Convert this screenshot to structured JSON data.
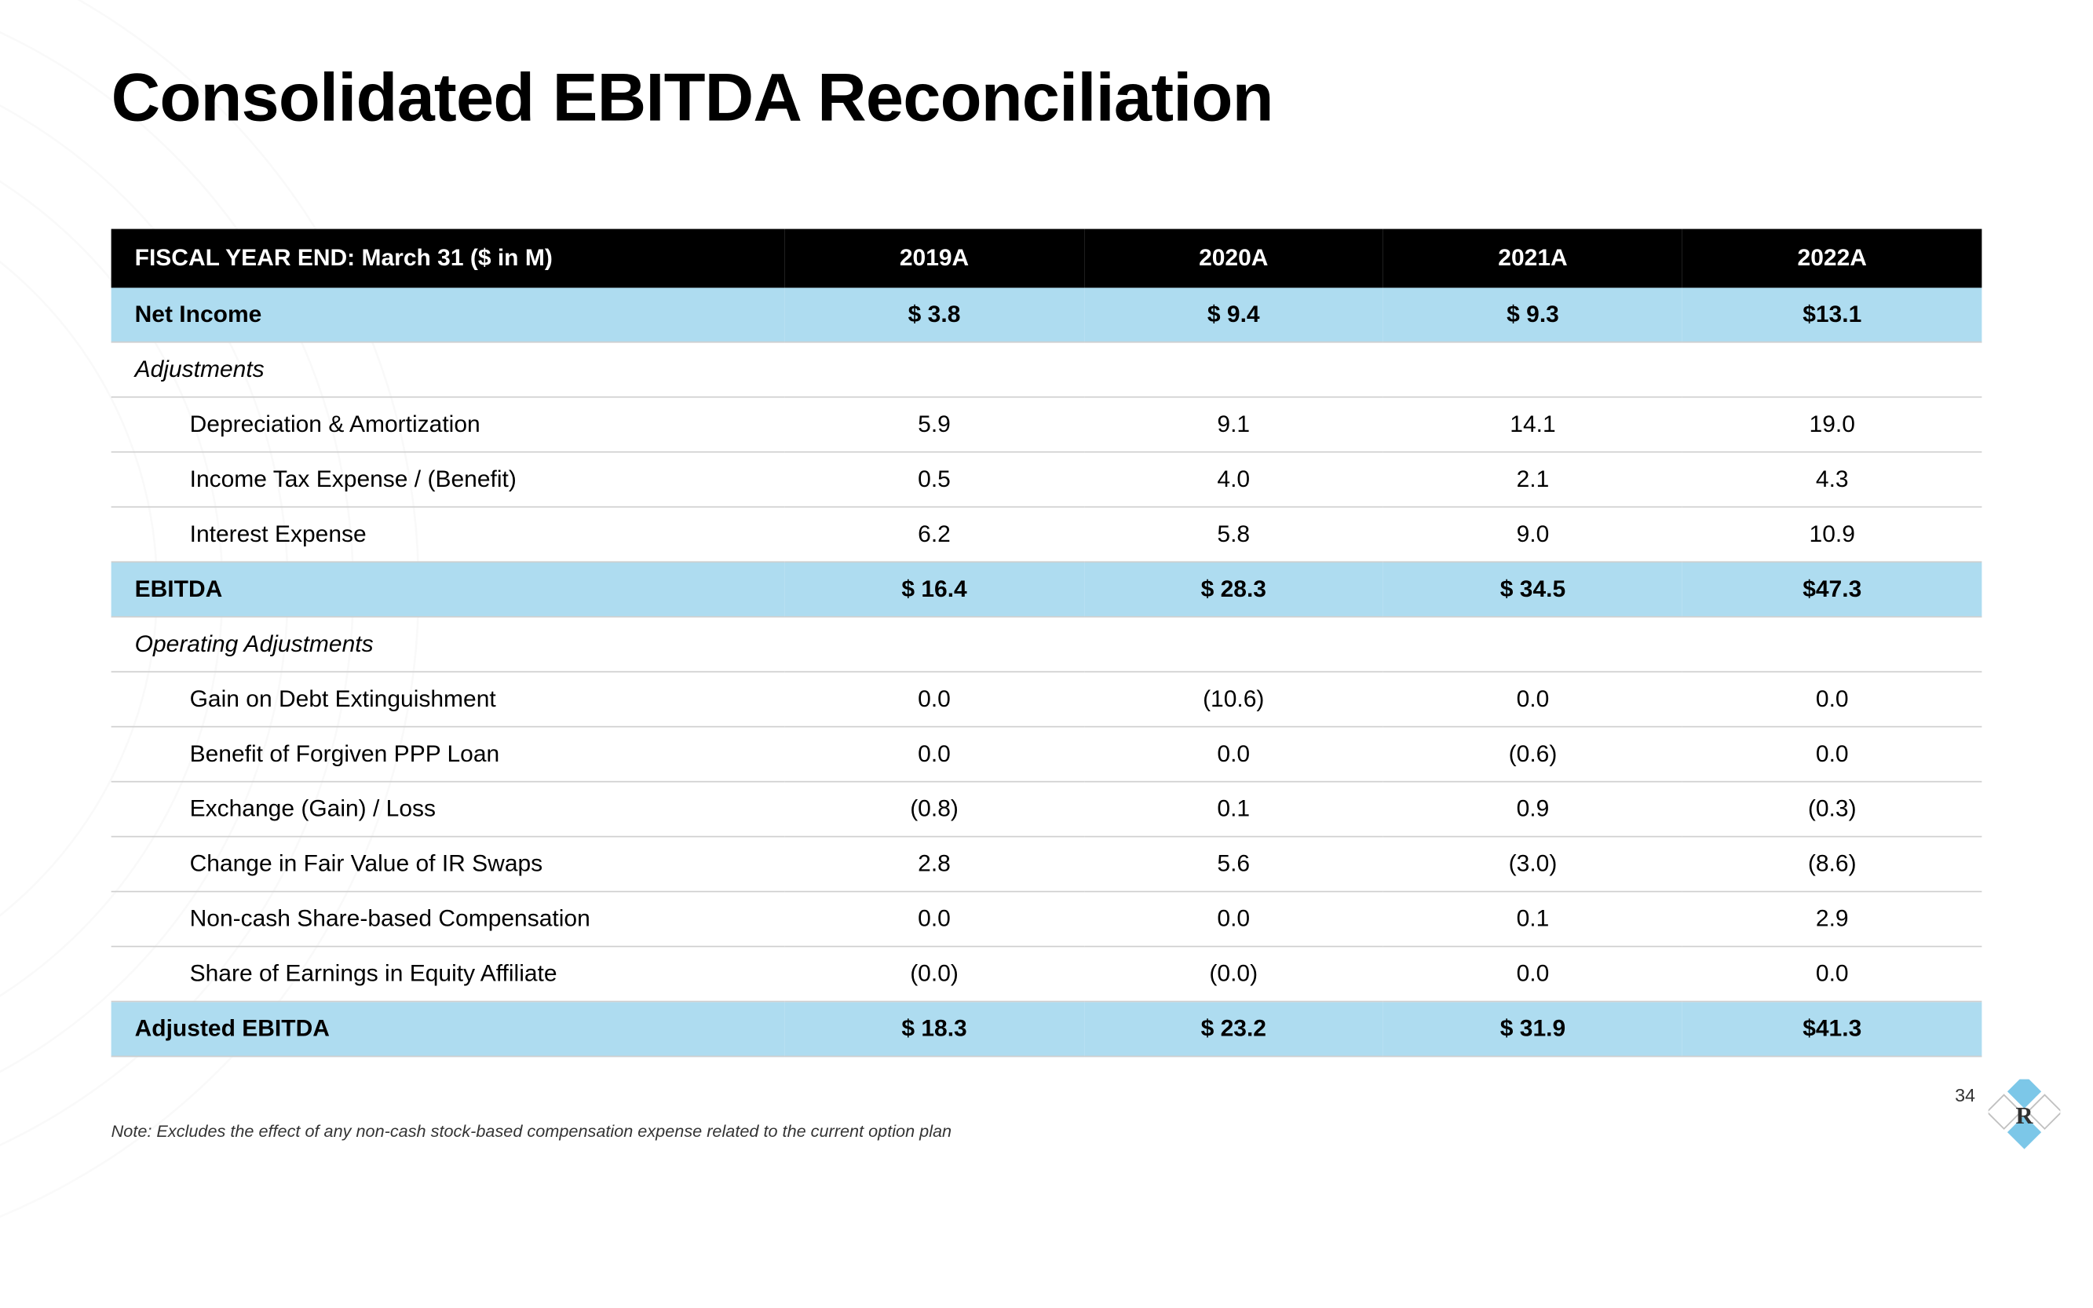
{
  "title": "Consolidated EBITDA Reconciliation",
  "header": {
    "label": "FISCAL YEAR END: March 31 ($ in M)",
    "cols": [
      "2019A",
      "2020A",
      "2021A",
      "2022A"
    ]
  },
  "rows": [
    {
      "type": "highlight",
      "label": "Net Income",
      "vals": [
        "$ 3.8",
        "$ 9.4",
        "$ 9.3",
        "$13.1"
      ]
    },
    {
      "type": "section",
      "label": "Adjustments",
      "vals": [
        "",
        "",
        "",
        ""
      ]
    },
    {
      "type": "indent",
      "label": "Depreciation & Amortization",
      "vals": [
        "5.9",
        "9.1",
        "14.1",
        "19.0"
      ]
    },
    {
      "type": "indent",
      "label": "Income Tax Expense / (Benefit)",
      "vals": [
        "0.5",
        "4.0",
        "2.1",
        "4.3"
      ]
    },
    {
      "type": "indent",
      "label": "Interest Expense",
      "vals": [
        "6.2",
        "5.8",
        "9.0",
        "10.9"
      ]
    },
    {
      "type": "highlight",
      "label": "EBITDA",
      "vals": [
        "$ 16.4",
        "$ 28.3",
        "$ 34.5",
        "$47.3"
      ]
    },
    {
      "type": "section",
      "label": "Operating Adjustments",
      "vals": [
        "",
        "",
        "",
        ""
      ]
    },
    {
      "type": "indent",
      "label": "Gain on Debt Extinguishment",
      "vals": [
        "0.0",
        "(10.6)",
        "0.0",
        "0.0"
      ]
    },
    {
      "type": "indent",
      "label": "Benefit of Forgiven PPP Loan",
      "vals": [
        "0.0",
        "0.0",
        "(0.6)",
        "0.0"
      ]
    },
    {
      "type": "indent",
      "label": "Exchange (Gain) / Loss",
      "vals": [
        "(0.8)",
        "0.1",
        "0.9",
        "(0.3)"
      ]
    },
    {
      "type": "indent",
      "label": "Change in Fair Value of IR Swaps",
      "vals": [
        "2.8",
        "5.6",
        "(3.0)",
        "(8.6)"
      ]
    },
    {
      "type": "indent",
      "label": "Non-cash Share-based Compensation",
      "vals": [
        "0.0",
        "0.0",
        "0.1",
        "2.9"
      ]
    },
    {
      "type": "indent",
      "label": "Share of Earnings in Equity Affiliate",
      "vals": [
        "(0.0)",
        "(0.0)",
        "0.0",
        "0.0"
      ]
    },
    {
      "type": "highlight",
      "label": "Adjusted EBITDA",
      "vals": [
        "$ 18.3",
        "$ 23.2",
        "$ 31.9",
        "$41.3"
      ]
    }
  ],
  "footnote": "Note: Excludes the effect of any non-cash stock-based compensation expense related to the current option plan",
  "page_number": "34",
  "colors": {
    "header_bg": "#000000",
    "header_fg": "#ffffff",
    "highlight_bg": "#aedcf0",
    "row_border": "#cfcfcf",
    "text": "#000000",
    "footnote": "#333333",
    "logo_accent": "#7cc7e8",
    "arc_stroke": "#d9d9d9"
  },
  "layout": {
    "slide_w": 1600,
    "slide_h": 900,
    "title_fontsize": 52,
    "table_fontsize": 18,
    "footnote_fontsize": 13,
    "col_widths_pct": [
      36,
      16,
      16,
      16,
      16
    ]
  }
}
